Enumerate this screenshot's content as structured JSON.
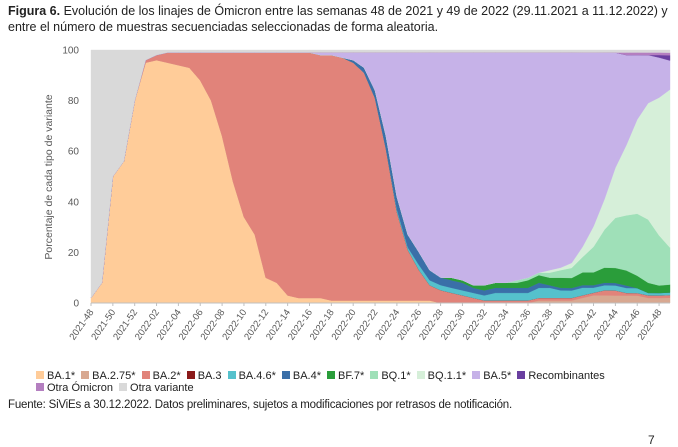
{
  "caption": {
    "label": "Figura 6.",
    "text": " Evolución de los linajes de Ómicron entre las semanas 48 de 2021 y 49 de 2022 (29.11.2021 a 11.12.2022) y entre el número de muestras secuenciadas seleccionadas de forma aleatoria."
  },
  "source": "Fuente: SiViEs a 30.12.2022. Datos preliminares, sujetos a modificaciones por retrasos de notificación.",
  "page_number": "7",
  "chart_data": {
    "type": "area",
    "stacked": true,
    "ylabel": "Porcentaje de cada tipo de variante",
    "xlabel": "",
    "ylim": [
      0,
      100
    ],
    "yticks": [
      0,
      20,
      40,
      60,
      80,
      100
    ],
    "grid": false,
    "legend_position": "bottom",
    "x": [
      "2021-48",
      "2021-49",
      "2021-50",
      "2021-51",
      "2021-52",
      "2022-01",
      "2022-02",
      "2022-03",
      "2022-04",
      "2022-05",
      "2022-06",
      "2022-07",
      "2022-08",
      "2022-09",
      "2022-10",
      "2022-11",
      "2022-12",
      "2022-13",
      "2022-14",
      "2022-15",
      "2022-16",
      "2022-17",
      "2022-18",
      "2022-19",
      "2022-20",
      "2022-21",
      "2022-22",
      "2022-23",
      "2022-24",
      "2022-25",
      "2022-26",
      "2022-27",
      "2022-28",
      "2022-29",
      "2022-30",
      "2022-31",
      "2022-32",
      "2022-33",
      "2022-34",
      "2022-35",
      "2022-36",
      "2022-37",
      "2022-38",
      "2022-39",
      "2022-40",
      "2022-41",
      "2022-42",
      "2022-43",
      "2022-44",
      "2022-45",
      "2022-46",
      "2022-47",
      "2022-48",
      "2022-49"
    ],
    "xtick_labels": [
      "2021-48",
      "2021-50",
      "2021-52",
      "2022-02",
      "2022-04",
      "2022-06",
      "2022-08",
      "2022-10",
      "2022-12",
      "2022-14",
      "2022-16",
      "2022-18",
      "2022-20",
      "2022-22",
      "2022-24",
      "2022-26",
      "2022-28",
      "2022-30",
      "2022-32",
      "2022-34",
      "2022-36",
      "2022-38",
      "2022-40",
      "2022-42",
      "2022-44",
      "2022-46",
      "2022-48"
    ],
    "series": [
      {
        "name": "BA.1*",
        "color": "#FFCC99",
        "values": [
          2,
          8,
          50,
          56,
          80,
          95,
          96,
          95,
          94,
          93,
          88,
          80,
          66,
          48,
          34,
          27,
          10,
          8,
          3,
          2,
          2,
          2,
          1,
          1,
          1,
          1,
          1,
          1,
          1,
          1,
          1,
          1,
          0,
          0,
          0,
          0,
          0,
          0,
          0,
          0,
          0,
          0,
          0,
          0,
          0,
          0,
          0,
          0,
          0,
          0,
          0,
          0,
          0,
          0
        ]
      },
      {
        "name": "BA.2.75*",
        "color": "#D8A891",
        "values": [
          0,
          0,
          0,
          0,
          0,
          0,
          0,
          0,
          0,
          0,
          0,
          0,
          0,
          0,
          0,
          0,
          0,
          0,
          0,
          0,
          0,
          0,
          0,
          0,
          0,
          0,
          0,
          0,
          0,
          0,
          0,
          0,
          0,
          0,
          0,
          0,
          0,
          0,
          0,
          0,
          0,
          1,
          1,
          1,
          1,
          2,
          3,
          3,
          3,
          3,
          3,
          2,
          2,
          2
        ]
      },
      {
        "name": "BA.2*",
        "color": "#E1837A",
        "values": [
          0,
          0,
          0,
          0,
          0,
          1,
          2,
          4,
          5,
          6,
          11,
          19,
          33,
          51,
          65,
          72,
          89,
          91,
          96,
          97,
          97,
          96,
          97,
          96,
          94,
          90,
          80,
          60,
          35,
          20,
          12,
          6,
          5,
          4,
          3,
          2,
          1,
          1,
          1,
          1,
          1,
          1,
          1,
          1,
          1,
          1,
          1,
          2,
          2,
          1,
          1,
          1,
          1,
          1
        ]
      },
      {
        "name": "BA.3",
        "color": "#8B1A1A",
        "values": [
          0,
          0,
          0,
          0,
          0,
          0,
          0,
          0,
          0,
          0,
          0,
          0,
          0,
          0,
          0,
          0,
          0,
          0,
          0,
          0,
          0,
          0,
          0,
          0,
          0,
          0,
          0,
          0,
          0,
          0,
          0,
          0,
          0,
          0,
          0,
          0,
          0,
          0,
          0,
          0,
          0,
          0,
          0,
          0,
          0,
          0,
          0,
          0,
          0,
          0,
          0,
          0,
          0,
          0
        ]
      },
      {
        "name": "BA.4.6*",
        "color": "#55C1CC",
        "values": [
          0,
          0,
          0,
          0,
          0,
          0,
          0,
          0,
          0,
          0,
          0,
          0,
          0,
          0,
          0,
          0,
          0,
          0,
          0,
          0,
          0,
          0,
          0,
          0,
          0,
          0,
          0,
          0,
          1,
          1,
          2,
          2,
          2,
          2,
          2,
          2,
          2,
          3,
          3,
          3,
          3,
          4,
          4,
          3,
          3,
          3,
          2,
          2,
          2,
          2,
          2,
          1,
          1,
          1
        ]
      },
      {
        "name": "BA.4*",
        "color": "#3A6FA8",
        "values": [
          0,
          0,
          0,
          0,
          0,
          0,
          0,
          0,
          0,
          0,
          0,
          0,
          0,
          0,
          0,
          0,
          0,
          0,
          0,
          0,
          0,
          0,
          0,
          0,
          1,
          2,
          3,
          5,
          5,
          5,
          5,
          4,
          3,
          3,
          3,
          2,
          2,
          2,
          2,
          2,
          2,
          2,
          1,
          1,
          1,
          1,
          1,
          1,
          1,
          1,
          0,
          0,
          0,
          0
        ]
      },
      {
        "name": "BF.7*",
        "color": "#2A9D3A",
        "values": [
          0,
          0,
          0,
          0,
          0,
          0,
          0,
          0,
          0,
          0,
          0,
          0,
          0,
          0,
          0,
          0,
          0,
          0,
          0,
          0,
          0,
          0,
          0,
          0,
          0,
          0,
          0,
          0,
          0,
          0,
          0,
          0,
          0,
          1,
          1,
          1,
          2,
          2,
          2,
          2,
          3,
          3,
          3,
          4,
          4,
          5,
          5,
          6,
          6,
          6,
          5,
          4,
          3,
          3
        ]
      },
      {
        "name": "BQ.1*",
        "color": "#9FE0B8",
        "values": [
          0,
          0,
          0,
          0,
          0,
          0,
          0,
          0,
          0,
          0,
          0,
          0,
          0,
          0,
          0,
          0,
          0,
          0,
          0,
          0,
          0,
          0,
          0,
          0,
          0,
          0,
          0,
          0,
          0,
          0,
          0,
          0,
          0,
          0,
          0,
          0,
          0,
          0,
          0,
          1,
          1,
          1,
          2,
          3,
          4,
          6,
          10,
          15,
          20,
          22,
          25,
          25,
          20,
          14
        ]
      },
      {
        "name": "BQ.1.1*",
        "color": "#D6EFD9",
        "values": [
          0,
          0,
          0,
          0,
          0,
          0,
          0,
          0,
          0,
          0,
          0,
          0,
          0,
          0,
          0,
          0,
          0,
          0,
          0,
          0,
          0,
          0,
          0,
          0,
          0,
          0,
          0,
          0,
          0,
          0,
          0,
          0,
          0,
          0,
          0,
          0,
          0,
          0,
          0,
          0,
          0,
          0,
          1,
          1,
          2,
          4,
          8,
          12,
          20,
          28,
          38,
          46,
          55,
          60
        ]
      },
      {
        "name": "BA.5*",
        "color": "#C6B2E8",
        "values": [
          0,
          0,
          0,
          0,
          0,
          0,
          0,
          0,
          0,
          0,
          0,
          0,
          0,
          0,
          0,
          0,
          0,
          0,
          0,
          0,
          0,
          1,
          1,
          2,
          3,
          6,
          15,
          33,
          57,
          72,
          78,
          86,
          88,
          89,
          90,
          92,
          92,
          91,
          91,
          90,
          89,
          87,
          86,
          85,
          84,
          76,
          68,
          58,
          46,
          36,
          26,
          19,
          16,
          11
        ]
      },
      {
        "name": "Recombinantes",
        "color": "#6A3FA0",
        "values": [
          0,
          0,
          0,
          0,
          0,
          0,
          0,
          0,
          0,
          0,
          0,
          0,
          0,
          0,
          0,
          0,
          0,
          0,
          0,
          0,
          0,
          0,
          0,
          0,
          0,
          0,
          0,
          0,
          0,
          0,
          0,
          0,
          0,
          0,
          0,
          0,
          0,
          0,
          0,
          0,
          0,
          0,
          0,
          0,
          0,
          0,
          0,
          0,
          0,
          0,
          0,
          0,
          1,
          2
        ]
      },
      {
        "name": "Otra Ómicron",
        "color": "#B47FC0",
        "values": [
          0,
          0,
          0,
          0,
          0,
          0,
          0,
          0,
          0,
          0,
          0,
          0,
          0,
          0,
          0,
          0,
          0,
          0,
          0,
          0,
          0,
          0,
          0,
          0,
          0,
          0,
          0,
          0,
          0,
          0,
          0,
          0,
          0,
          0,
          0,
          0,
          0,
          0,
          0,
          0,
          0,
          0,
          0,
          0,
          0,
          0,
          0,
          0,
          0,
          1,
          1,
          1,
          1,
          1
        ]
      },
      {
        "name": "Otra variante",
        "color": "#D9D9D9",
        "values": [
          98,
          92,
          50,
          44,
          20,
          4,
          2,
          1,
          1,
          1,
          1,
          1,
          1,
          1,
          1,
          1,
          1,
          1,
          1,
          1,
          1,
          1,
          1,
          1,
          1,
          1,
          1,
          1,
          1,
          1,
          1,
          1,
          1,
          1,
          1,
          1,
          1,
          1,
          1,
          1,
          1,
          1,
          1,
          1,
          1,
          1,
          1,
          1,
          1,
          1,
          1,
          1,
          1,
          1
        ]
      }
    ]
  }
}
